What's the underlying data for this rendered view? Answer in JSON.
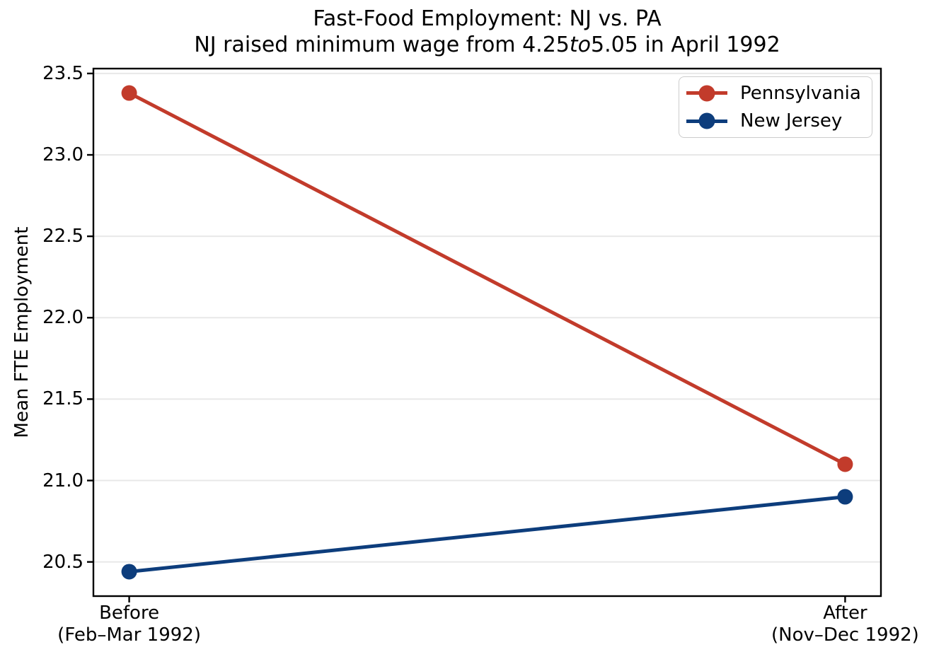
{
  "chart_data": {
    "type": "line",
    "title": "Fast-Food Employment: NJ vs. PA",
    "subtitle": {
      "prefix": "NJ raised minimum wage from ",
      "wage_from": "4.25",
      "to_word": "to",
      "wage_to": "5.05",
      "suffix": " in April 1992"
    },
    "ylabel": "Mean FTE Employment",
    "xlabel": "",
    "categories": [
      {
        "x": 0,
        "line1": "Before",
        "line2": "(Feb–Mar 1992)"
      },
      {
        "x": 1,
        "line1": "After",
        "line2": "(Nov–Dec 1992)"
      }
    ],
    "series": [
      {
        "name": "Pennsylvania",
        "color": "#c23b2b",
        "x": [
          0,
          1
        ],
        "values": [
          23.38,
          21.1
        ]
      },
      {
        "name": "New Jersey",
        "color": "#0d3d7c",
        "x": [
          0,
          1
        ],
        "values": [
          20.44,
          20.9
        ]
      }
    ],
    "yticks": [
      {
        "value": 20.5,
        "label": "20.5"
      },
      {
        "value": 21.0,
        "label": "21.0"
      },
      {
        "value": 21.5,
        "label": "21.5"
      },
      {
        "value": 22.0,
        "label": "22.0"
      },
      {
        "value": 22.5,
        "label": "22.5"
      },
      {
        "value": 23.0,
        "label": "23.0"
      },
      {
        "value": 23.5,
        "label": "23.5"
      }
    ],
    "ylim": [
      20.29,
      23.53
    ],
    "xlim": [
      -0.05,
      1.05
    ],
    "grid": "horizontal",
    "legend_position": "upper right",
    "colors": {
      "grid": "#e8e8e8",
      "spine": "#000000",
      "legend_border": "#cccccc",
      "background": "#ffffff"
    }
  }
}
